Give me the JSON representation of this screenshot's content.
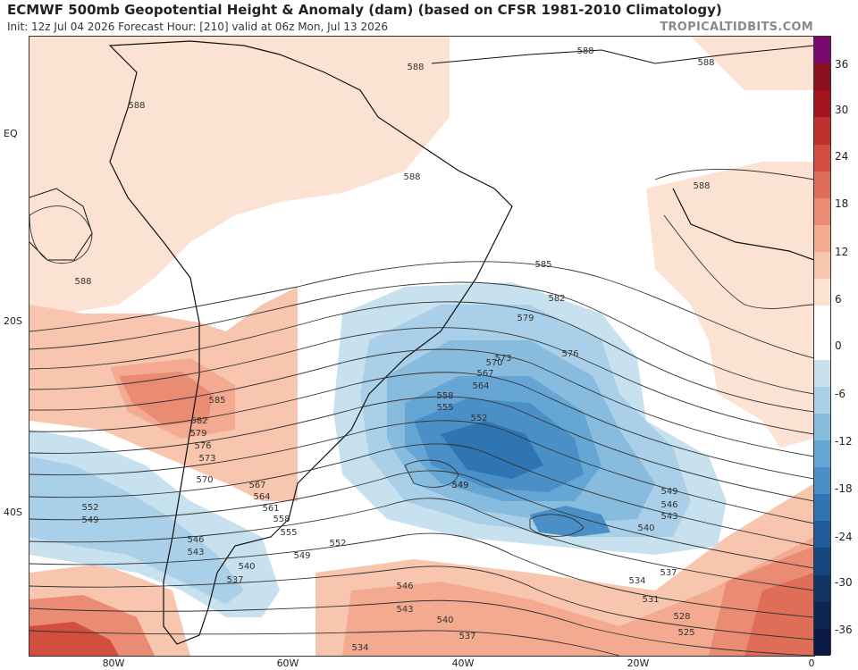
{
  "header": {
    "title": "ECMWF 500mb Geopotential Height & Anomaly (dam) (based on CFSR 1981-2010 Climatology)",
    "subtitle": "Init: 12z Jul 04 2026   Forecast Hour: [210]   valid at 06z Mon, Jul 13 2026",
    "brand": "TROPICALTIDBITS.COM"
  },
  "axes": {
    "lat_labels": [
      "EQ",
      "20S",
      "40S"
    ],
    "lon_labels": [
      "80W",
      "60W",
      "40W",
      "20W",
      "0"
    ]
  },
  "colorbar": {
    "labels": [
      "36",
      "30",
      "24",
      "18",
      "12",
      "6",
      "0",
      "-6",
      "-12",
      "-18",
      "-24",
      "-30",
      "-36"
    ],
    "colors": [
      "#7b0a6f",
      "#8b0f1f",
      "#a3141f",
      "#c0302e",
      "#d24f40",
      "#e06d58",
      "#ea8c73",
      "#f3aa90",
      "#f8c6ae",
      "#fce2d2",
      "#ffffff",
      "#ffffff",
      "#c8e1ef",
      "#a9d0e8",
      "#88bcdf",
      "#66a6d4",
      "#4a8fc6",
      "#2f74b3",
      "#1f5b9a",
      "#17467e",
      "#123564",
      "#0d2650",
      "#0a1a44"
    ]
  },
  "contour_labels": [
    "588",
    "588",
    "588",
    "588",
    "588",
    "588",
    "585",
    "582",
    "579",
    "576",
    "573",
    "570",
    "567",
    "564",
    "558",
    "555",
    "552",
    "549",
    "549",
    "549",
    "546",
    "543",
    "540",
    "537",
    "534",
    "531",
    "528",
    "525",
    "552",
    "549",
    "546",
    "543",
    "540",
    "537",
    "588",
    "585",
    "582",
    "579",
    "576",
    "573",
    "570",
    "567",
    "564",
    "561",
    "558",
    "555",
    "552",
    "549",
    "546",
    "543",
    "540",
    "537",
    "534"
  ]
}
